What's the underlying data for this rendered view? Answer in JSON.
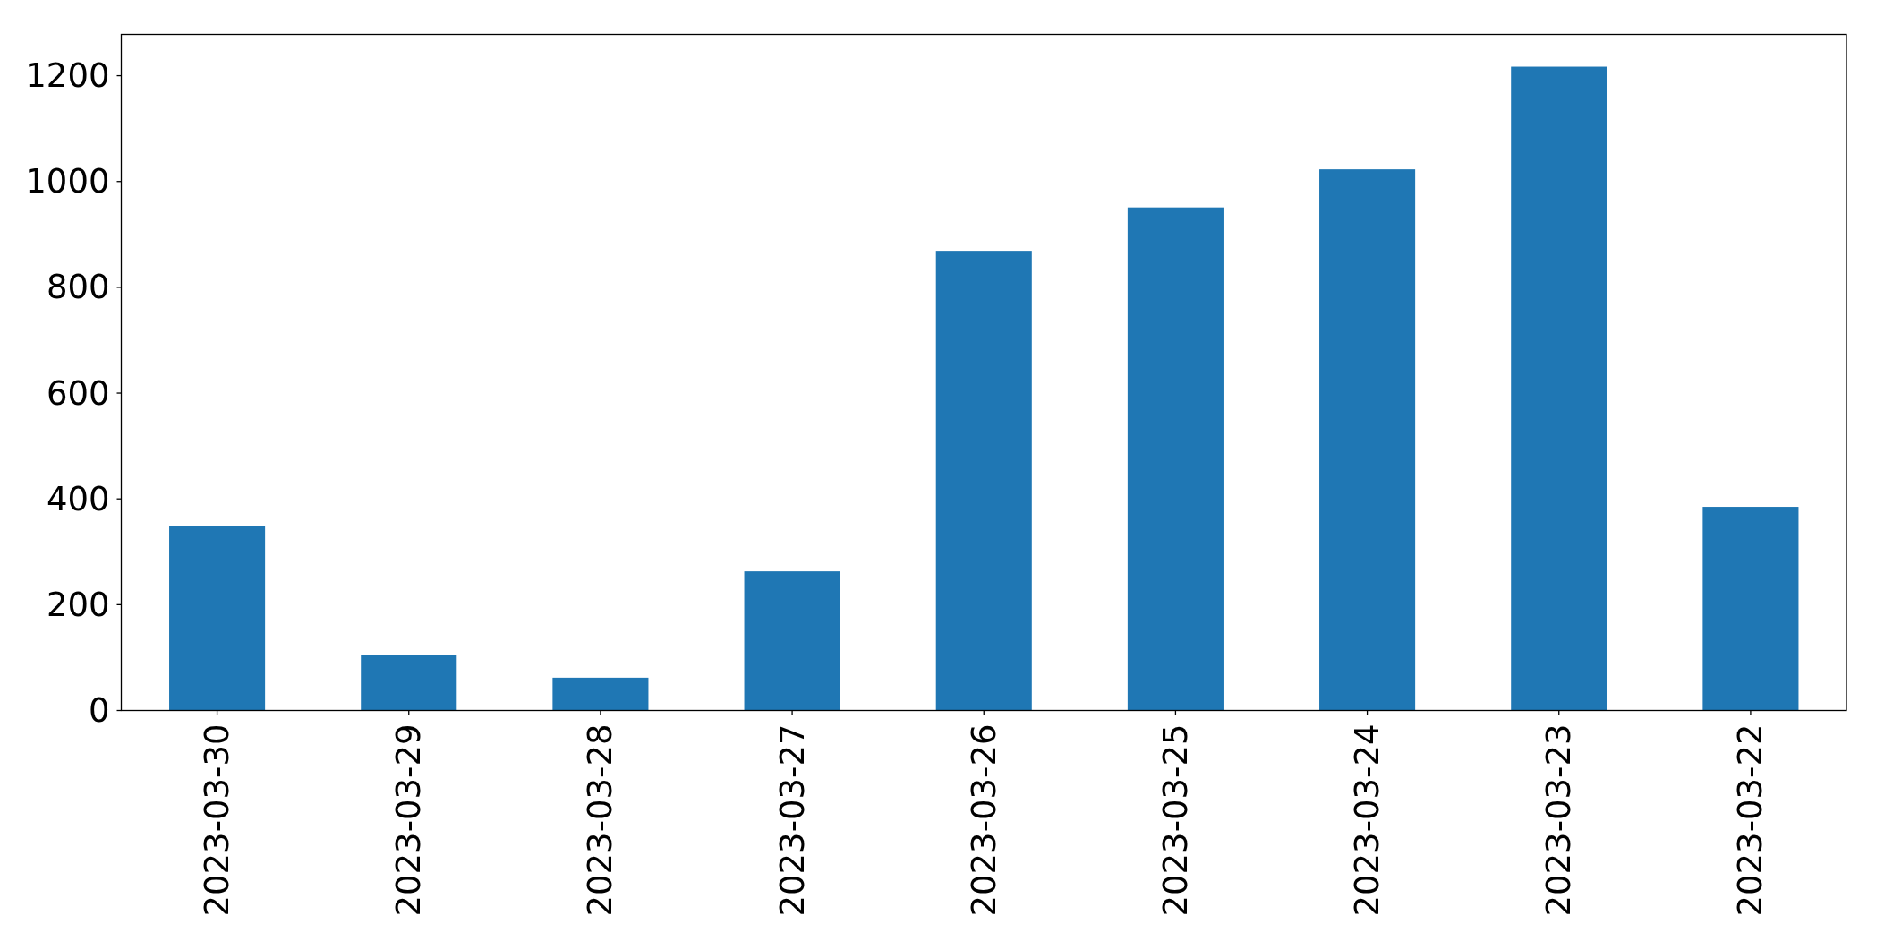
{
  "chart_data": {
    "type": "bar",
    "categories": [
      "2023-03-30",
      "2023-03-29",
      "2023-03-28",
      "2023-03-27",
      "2023-03-26",
      "2023-03-25",
      "2023-03-24",
      "2023-03-23",
      "2023-03-22"
    ],
    "values": [
      349,
      105,
      62,
      263,
      869,
      951,
      1023,
      1217,
      385
    ],
    "color": "#1f77b4",
    "ylim": [
      0,
      1278
    ],
    "yticks": [
      0,
      200,
      400,
      600,
      800,
      1000,
      1200
    ]
  }
}
